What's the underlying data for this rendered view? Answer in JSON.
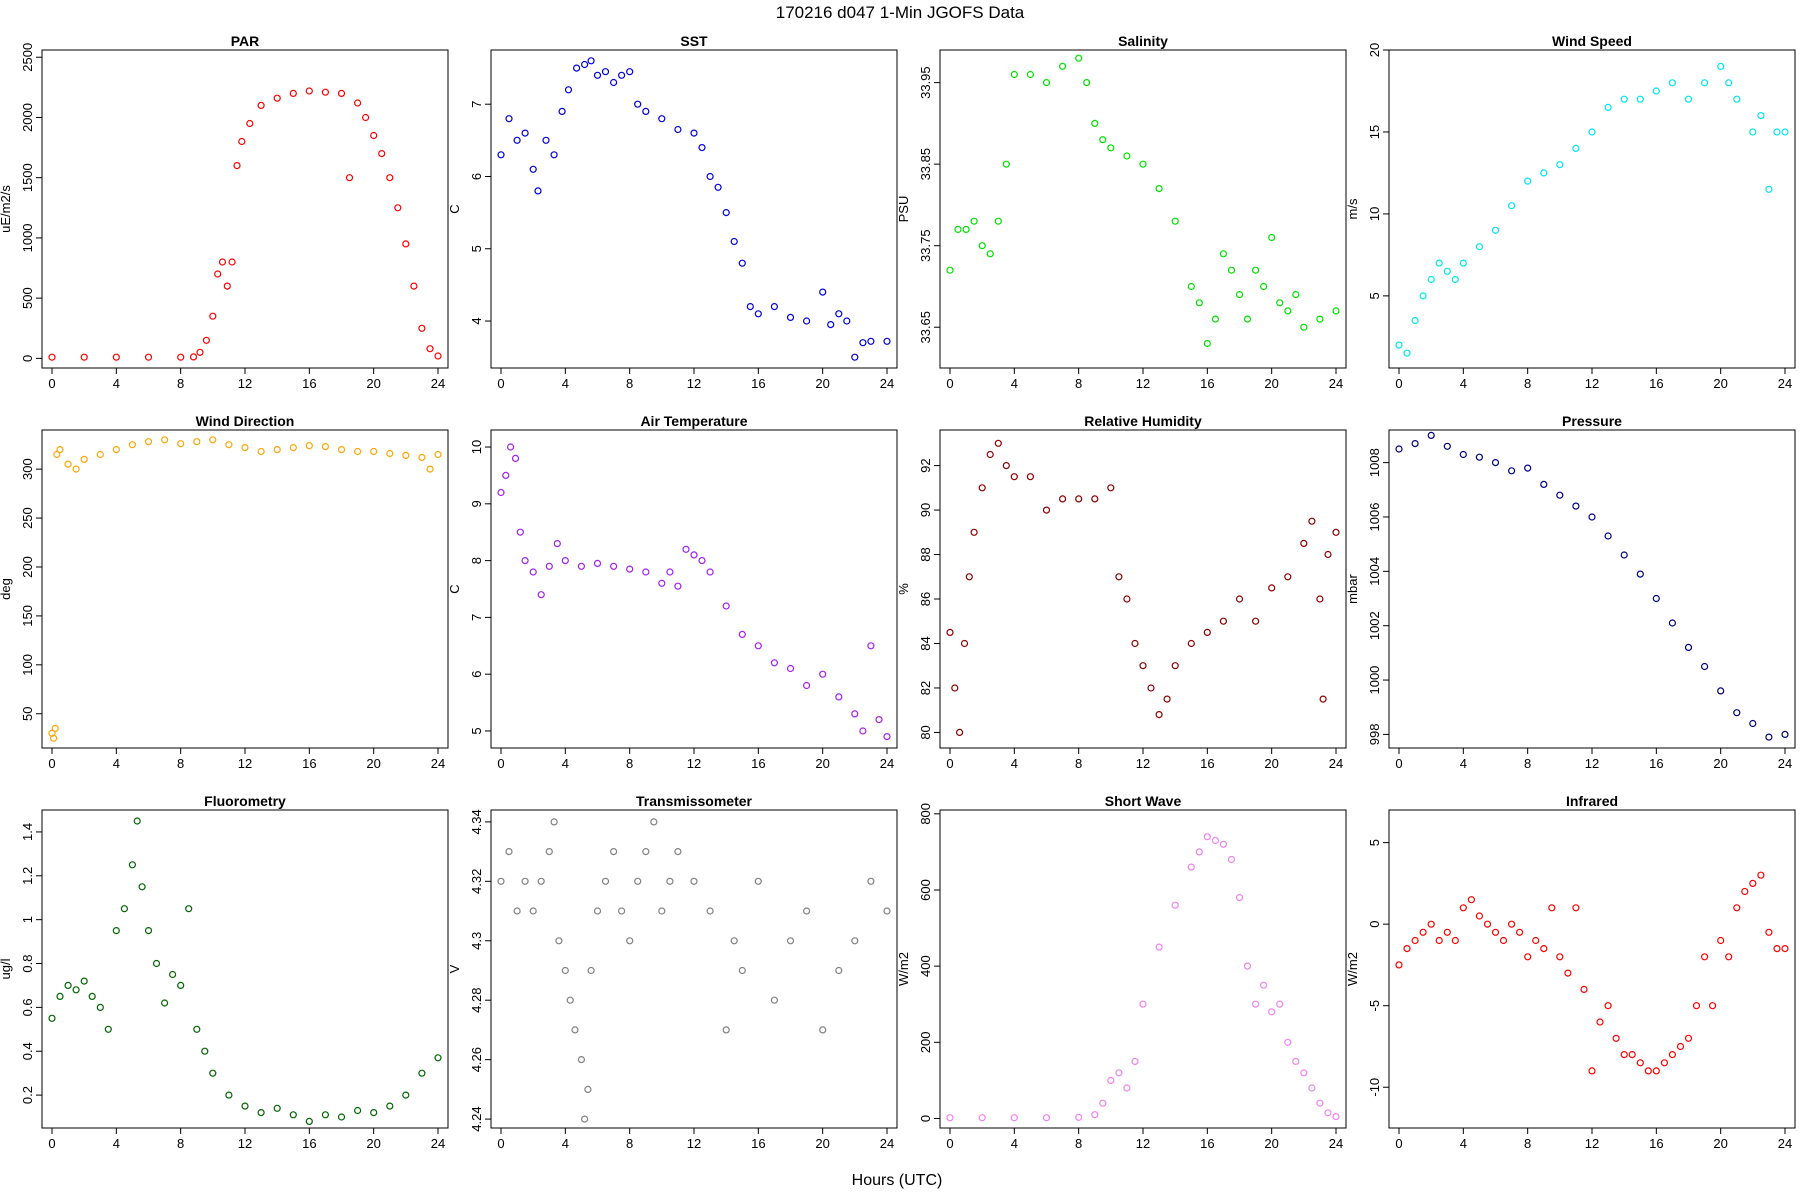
{
  "figure": {
    "title": "170216   d047   1-Min  JGOFS Data",
    "xlabel": "Hours (UTC)"
  },
  "chart_data": [
    {
      "type": "scatter",
      "title": "PAR",
      "ylabel": "uE/m2/s",
      "color": "#ff0000",
      "xlim": [
        0,
        24
      ],
      "ylim": [
        -80,
        2560
      ],
      "xticks": [
        0,
        4,
        8,
        12,
        16,
        20,
        24
      ],
      "yticks": [
        0,
        500,
        1000,
        1500,
        2000,
        2500
      ],
      "x": [
        0,
        2,
        4,
        6,
        8,
        8.8,
        9.2,
        9.6,
        10,
        10.3,
        10.6,
        10.9,
        11.2,
        11.5,
        11.8,
        12.3,
        13,
        14,
        15,
        16,
        17,
        18,
        18.5,
        19,
        19.5,
        20,
        20.5,
        21,
        21.5,
        22,
        22.5,
        23,
        23.5,
        24
      ],
      "y": [
        10,
        10,
        10,
        10,
        10,
        12,
        50,
        150,
        350,
        700,
        800,
        600,
        800,
        1600,
        1800,
        1950,
        2100,
        2160,
        2200,
        2220,
        2210,
        2200,
        1500,
        2120,
        2000,
        1850,
        1700,
        1500,
        1250,
        950,
        600,
        250,
        80,
        20
      ]
    },
    {
      "type": "scatter",
      "title": "SST",
      "ylabel": "C",
      "color": "#0000dd",
      "xlim": [
        0,
        24
      ],
      "ylim": [
        3.35,
        7.75
      ],
      "xticks": [
        0,
        4,
        8,
        12,
        16,
        20,
        24
      ],
      "yticks": [
        4,
        5,
        6,
        7
      ],
      "x": [
        0,
        0.5,
        1,
        1.5,
        2,
        2.3,
        2.8,
        3.3,
        3.8,
        4.2,
        4.7,
        5.2,
        5.6,
        6,
        6.5,
        7,
        7.5,
        8,
        8.5,
        9,
        10,
        11,
        12,
        12.5,
        13,
        13.5,
        14,
        14.5,
        15,
        15.5,
        16,
        17,
        18,
        19,
        20,
        20.5,
        21,
        21.5,
        22,
        22.5,
        23,
        24
      ],
      "y": [
        6.3,
        6.8,
        6.5,
        6.6,
        6.1,
        5.8,
        6.5,
        6.3,
        6.9,
        7.2,
        7.5,
        7.55,
        7.6,
        7.4,
        7.45,
        7.3,
        7.4,
        7.45,
        7.0,
        6.9,
        6.8,
        6.65,
        6.6,
        6.4,
        6.0,
        5.85,
        5.5,
        5.1,
        4.8,
        4.2,
        4.1,
        4.2,
        4.05,
        4.0,
        4.4,
        3.95,
        4.1,
        4.0,
        3.5,
        3.7,
        3.72,
        3.72
      ]
    },
    {
      "type": "scatter",
      "title": "Salinity",
      "ylabel": "PSU",
      "color": "#00e000",
      "xlim": [
        0,
        24
      ],
      "ylim": [
        33.6,
        33.99
      ],
      "xticks": [
        0,
        4,
        8,
        12,
        16,
        20,
        24
      ],
      "yticks": [
        33.65,
        33.75,
        33.85,
        33.95
      ],
      "x": [
        0,
        0.5,
        1,
        1.5,
        2,
        2.5,
        3,
        3.5,
        4,
        5,
        6,
        7,
        8,
        8.5,
        9,
        9.5,
        10,
        11,
        12,
        13,
        14,
        15,
        15.5,
        16,
        16.5,
        17,
        17.5,
        18,
        18.5,
        19,
        19.5,
        20,
        20.5,
        21,
        21.5,
        22,
        23,
        24
      ],
      "y": [
        33.72,
        33.77,
        33.77,
        33.78,
        33.75,
        33.74,
        33.78,
        33.85,
        33.96,
        33.96,
        33.95,
        33.97,
        33.98,
        33.95,
        33.9,
        33.88,
        33.87,
        33.86,
        33.85,
        33.82,
        33.78,
        33.7,
        33.68,
        33.63,
        33.66,
        33.74,
        33.72,
        33.69,
        33.66,
        33.72,
        33.7,
        33.76,
        33.68,
        33.67,
        33.69,
        33.65,
        33.66,
        33.67
      ]
    },
    {
      "type": "scatter",
      "title": "Wind Speed",
      "ylabel": "m/s",
      "color": "#00e5ee",
      "xlim": [
        0,
        24
      ],
      "ylim": [
        0.6,
        20
      ],
      "xticks": [
        0,
        4,
        8,
        12,
        16,
        20,
        24
      ],
      "yticks": [
        5,
        10,
        15,
        20
      ],
      "x": [
        0,
        0.5,
        1,
        1.5,
        2,
        2.5,
        3,
        3.5,
        4,
        5,
        6,
        7,
        8,
        9,
        10,
        11,
        12,
        13,
        14,
        15,
        16,
        17,
        18,
        19,
        20,
        20.5,
        21,
        22,
        22.5,
        23,
        23.5,
        24
      ],
      "y": [
        2,
        1.5,
        3.5,
        5,
        6,
        7,
        6.5,
        6,
        7,
        8,
        9,
        10.5,
        12,
        12.5,
        13,
        14,
        15,
        16.5,
        17,
        17,
        17.5,
        18,
        17,
        18,
        19,
        18,
        17,
        15,
        16,
        11.5,
        15,
        15
      ]
    },
    {
      "type": "scatter",
      "title": "Wind Direction",
      "ylabel": "deg",
      "color": "#ffa500",
      "xlim": [
        0,
        24
      ],
      "ylim": [
        15,
        340
      ],
      "xticks": [
        0,
        4,
        8,
        12,
        16,
        20,
        24
      ],
      "yticks": [
        50,
        100,
        150,
        200,
        250,
        300
      ],
      "x": [
        0,
        0.1,
        0.2,
        0.3,
        0.5,
        1,
        1.5,
        2,
        3,
        4,
        5,
        6,
        7,
        8,
        9,
        10,
        11,
        12,
        13,
        14,
        15,
        16,
        17,
        18,
        19,
        20,
        21,
        22,
        23,
        23.5,
        24
      ],
      "y": [
        30,
        25,
        35,
        315,
        320,
        305,
        300,
        310,
        315,
        320,
        325,
        328,
        330,
        326,
        328,
        330,
        325,
        322,
        318,
        320,
        322,
        324,
        323,
        320,
        318,
        318,
        316,
        314,
        312,
        300,
        315
      ]
    },
    {
      "type": "scatter",
      "title": "Air Temperature",
      "ylabel": "C",
      "color": "#a020f0",
      "xlim": [
        0,
        24
      ],
      "ylim": [
        4.7,
        10.3
      ],
      "xticks": [
        0,
        4,
        8,
        12,
        16,
        20,
        24
      ],
      "yticks": [
        5,
        6,
        7,
        8,
        9,
        10
      ],
      "x": [
        0,
        0.3,
        0.6,
        0.9,
        1.2,
        1.5,
        2,
        2.5,
        3,
        3.5,
        4,
        5,
        6,
        7,
        8,
        9,
        10,
        10.5,
        11,
        11.5,
        12,
        12.5,
        13,
        14,
        15,
        16,
        17,
        18,
        19,
        20,
        21,
        22,
        22.5,
        23,
        23.5,
        24
      ],
      "y": [
        9.2,
        9.5,
        10,
        9.8,
        8.5,
        8.0,
        7.8,
        7.4,
        7.9,
        8.3,
        8.0,
        7.9,
        7.95,
        7.9,
        7.85,
        7.8,
        7.6,
        7.8,
        7.55,
        8.2,
        8.1,
        8.0,
        7.8,
        7.2,
        6.7,
        6.5,
        6.2,
        6.1,
        5.8,
        6.0,
        5.6,
        5.3,
        5.0,
        6.5,
        5.2,
        4.9
      ]
    },
    {
      "type": "scatter",
      "title": "Relative Humidity",
      "ylabel": "%",
      "color": "#8b0000",
      "xlim": [
        0,
        24
      ],
      "ylim": [
        79.3,
        93.6
      ],
      "xticks": [
        0,
        4,
        8,
        12,
        16,
        20,
        24
      ],
      "yticks": [
        80,
        82,
        84,
        86,
        88,
        90,
        92
      ],
      "x": [
        0,
        0.3,
        0.6,
        0.9,
        1.2,
        1.5,
        2,
        2.5,
        3,
        3.5,
        4,
        5,
        6,
        7,
        8,
        9,
        10,
        10.5,
        11,
        11.5,
        12,
        12.5,
        13,
        13.5,
        14,
        15,
        16,
        17,
        18,
        19,
        20,
        21,
        22,
        22.5,
        23,
        23.2,
        23.5,
        24
      ],
      "y": [
        84.5,
        82,
        80,
        84,
        87,
        89,
        91,
        92.5,
        93,
        92,
        91.5,
        91.5,
        90,
        90.5,
        90.5,
        90.5,
        91,
        87,
        86,
        84,
        83,
        82,
        80.8,
        81.5,
        83,
        84,
        84.5,
        85,
        86,
        85,
        86.5,
        87,
        88.5,
        89.5,
        86,
        81.5,
        88,
        89
      ]
    },
    {
      "type": "scatter",
      "title": "Pressure",
      "ylabel": "mbar",
      "color": "#000080",
      "xlim": [
        0,
        24
      ],
      "ylim": [
        997.5,
        1009.2
      ],
      "xticks": [
        0,
        4,
        8,
        12,
        16,
        20,
        24
      ],
      "yticks": [
        998,
        1000,
        1002,
        1004,
        1006,
        1008
      ],
      "x": [
        0,
        1,
        2,
        3,
        4,
        5,
        6,
        7,
        8,
        9,
        10,
        11,
        12,
        13,
        14,
        15,
        16,
        17,
        18,
        19,
        20,
        21,
        22,
        23,
        24
      ],
      "y": [
        1008.5,
        1008.7,
        1009,
        1008.6,
        1008.3,
        1008.2,
        1008,
        1007.7,
        1007.8,
        1007.2,
        1006.8,
        1006.4,
        1006,
        1005.3,
        1004.6,
        1003.9,
        1003,
        1002.1,
        1001.2,
        1000.5,
        999.6,
        998.8,
        998.4,
        997.9,
        998
      ]
    },
    {
      "type": "scatter",
      "title": "Fluorometry",
      "ylabel": "ug/l",
      "color": "#006400",
      "xlim": [
        0,
        24
      ],
      "ylim": [
        0.05,
        1.5
      ],
      "xticks": [
        0,
        4,
        8,
        12,
        16,
        20,
        24
      ],
      "yticks": [
        0.2,
        0.4,
        0.6,
        0.8,
        1.0,
        1.2,
        1.4
      ],
      "x": [
        0,
        0.5,
        1,
        1.5,
        2,
        2.5,
        3,
        3.5,
        4,
        4.5,
        5,
        5.3,
        5.6,
        6,
        6.5,
        7,
        7.5,
        8,
        8.5,
        9,
        9.5,
        10,
        11,
        12,
        13,
        14,
        15,
        16,
        17,
        18,
        19,
        20,
        21,
        22,
        23,
        24
      ],
      "y": [
        0.55,
        0.65,
        0.7,
        0.68,
        0.72,
        0.65,
        0.6,
        0.5,
        0.95,
        1.05,
        1.25,
        1.45,
        1.15,
        0.95,
        0.8,
        0.62,
        0.75,
        0.7,
        1.05,
        0.5,
        0.4,
        0.3,
        0.2,
        0.15,
        0.12,
        0.14,
        0.11,
        0.08,
        0.11,
        0.1,
        0.13,
        0.12,
        0.15,
        0.2,
        0.3,
        0.37
      ]
    },
    {
      "type": "scatter",
      "title": "Transmissometer",
      "ylabel": "V",
      "color": "#808080",
      "xlim": [
        0,
        24
      ],
      "ylim": [
        4.237,
        4.344
      ],
      "xticks": [
        0,
        4,
        8,
        12,
        16,
        20,
        24
      ],
      "yticks": [
        4.24,
        4.26,
        4.28,
        4.3,
        4.32,
        4.34
      ],
      "x": [
        0,
        0.5,
        1,
        1.5,
        2,
        2.5,
        3,
        3.3,
        3.6,
        4,
        4.3,
        4.6,
        5,
        5.2,
        5.4,
        5.6,
        6,
        6.5,
        7,
        7.5,
        8,
        8.5,
        9,
        9.5,
        10,
        10.5,
        11,
        12,
        13,
        14,
        14.5,
        15,
        16,
        17,
        18,
        19,
        20,
        21,
        22,
        23,
        24
      ],
      "y": [
        4.32,
        4.33,
        4.31,
        4.32,
        4.31,
        4.32,
        4.33,
        4.34,
        4.3,
        4.29,
        4.28,
        4.27,
        4.26,
        4.24,
        4.25,
        4.29,
        4.31,
        4.32,
        4.33,
        4.31,
        4.3,
        4.32,
        4.33,
        4.34,
        4.31,
        4.32,
        4.33,
        4.32,
        4.31,
        4.27,
        4.3,
        4.29,
        4.32,
        4.28,
        4.3,
        4.31,
        4.27,
        4.29,
        4.3,
        4.32,
        4.31
      ]
    },
    {
      "type": "scatter",
      "title": "Short Wave",
      "ylabel": "W/m2",
      "color": "#ee82ee",
      "xlim": [
        0,
        24
      ],
      "ylim": [
        -25,
        810
      ],
      "xticks": [
        0,
        4,
        8,
        12,
        16,
        20,
        24
      ],
      "yticks": [
        0,
        200,
        400,
        600,
        800
      ],
      "x": [
        0,
        2,
        4,
        6,
        8,
        9,
        9.5,
        10,
        10.5,
        11,
        11.5,
        12,
        13,
        14,
        15,
        15.5,
        16,
        16.5,
        17,
        17.5,
        18,
        18.5,
        19,
        19.5,
        20,
        20.5,
        21,
        21.5,
        22,
        22.5,
        23,
        23.5,
        24
      ],
      "y": [
        2,
        2,
        2,
        2,
        3,
        10,
        40,
        100,
        120,
        80,
        150,
        300,
        450,
        560,
        660,
        700,
        740,
        730,
        720,
        680,
        580,
        400,
        300,
        350,
        280,
        300,
        200,
        150,
        120,
        80,
        40,
        15,
        5
      ]
    },
    {
      "type": "scatter",
      "title": "Infrared",
      "ylabel": "W/m2",
      "color": "#ff0000",
      "xlim": [
        0,
        24
      ],
      "ylim": [
        -12.5,
        7
      ],
      "xticks": [
        0,
        4,
        8,
        12,
        16,
        20,
        24
      ],
      "yticks": [
        -10,
        -5,
        0,
        5
      ],
      "x": [
        0,
        0.5,
        1,
        1.5,
        2,
        2.5,
        3,
        3.5,
        4,
        4.5,
        5,
        5.5,
        6,
        6.5,
        7,
        7.5,
        8,
        8.5,
        9,
        9.5,
        10,
        10.5,
        11,
        11.5,
        12,
        12.5,
        13,
        13.5,
        14,
        14.5,
        15,
        15.5,
        16,
        16.5,
        17,
        17.5,
        18,
        18.5,
        19,
        19.5,
        20,
        20.5,
        21,
        21.5,
        22,
        22.5,
        23,
        23.5,
        24
      ],
      "y": [
        -2.5,
        -1.5,
        -1,
        -0.5,
        0,
        -1,
        -0.5,
        -1,
        1,
        1.5,
        0.5,
        0,
        -0.5,
        -1,
        0,
        -0.5,
        -2,
        -1,
        -1.5,
        1,
        -2,
        -3,
        1,
        -4,
        -9,
        -6,
        -5,
        -7,
        -8,
        -8,
        -8.5,
        -9,
        -9,
        -8.5,
        -8,
        -7.5,
        -7,
        -5,
        -2,
        -5,
        -1,
        -2,
        1,
        2,
        2.5,
        3,
        -0.5,
        -1.5,
        -1.5
      ]
    }
  ]
}
